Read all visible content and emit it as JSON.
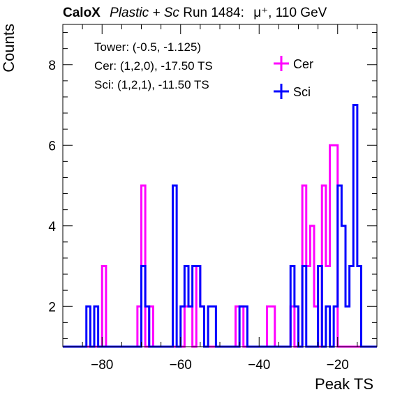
{
  "header": {
    "brand": "CaloX",
    "material": "Plastic + Sc",
    "run": "Run 1484:",
    "particle": "μ⁺, 110 GeV"
  },
  "info_lines": [
    "Tower: (-0.5, -1.125)",
    "Cer: (1,2,0), -17.50 TS",
    "Sci: (1,2,1), -11.50 TS"
  ],
  "chart_data": {
    "type": "histogram",
    "xlabel": "Peak TS",
    "ylabel": "Counts",
    "xlim": [
      -90,
      -10
    ],
    "ylim": [
      1,
      9
    ],
    "x_ticks": [
      -80,
      -60,
      -40,
      -20
    ],
    "y_ticks": [
      2,
      4,
      6,
      8
    ],
    "bin_width": 1,
    "bin_start": -90,
    "legend_position": "top-right",
    "series": [
      {
        "name": "Cer",
        "color": "#ff00ff",
        "values": [
          0,
          0,
          0,
          0,
          0,
          0,
          0,
          0,
          0,
          0,
          3,
          0,
          0,
          0,
          0,
          0,
          0,
          0,
          0,
          2,
          5,
          0,
          2,
          0,
          0,
          0,
          0,
          0,
          0,
          0,
          0,
          2,
          2,
          0,
          3,
          2,
          0,
          0,
          0,
          0,
          0,
          0,
          0,
          0,
          2,
          2,
          0,
          0,
          0,
          0,
          0,
          0,
          2,
          2,
          0,
          0,
          0,
          0,
          2,
          0,
          0,
          5,
          3,
          4,
          2,
          0,
          5,
          3,
          6,
          6,
          1,
          0,
          0,
          0,
          0,
          0,
          0,
          0,
          0,
          0
        ]
      },
      {
        "name": "Sci",
        "color": "#0000ff",
        "values": [
          0,
          0,
          0,
          0,
          0,
          0,
          2,
          0,
          2,
          0,
          0,
          0,
          0,
          0,
          0,
          0,
          0,
          0,
          0,
          0,
          3,
          2,
          0,
          0,
          0,
          0,
          0,
          0,
          5,
          0,
          2,
          3,
          2,
          3,
          3,
          2,
          0,
          2,
          2,
          0,
          0,
          0,
          0,
          0,
          0,
          2,
          2,
          0,
          0,
          0,
          0,
          0,
          0,
          0,
          0,
          0,
          0,
          0,
          3,
          2,
          0,
          3,
          0,
          0,
          0,
          3,
          0,
          2,
          0,
          2,
          5,
          4,
          2,
          3,
          7,
          3,
          0,
          0,
          0,
          0
        ]
      }
    ]
  }
}
